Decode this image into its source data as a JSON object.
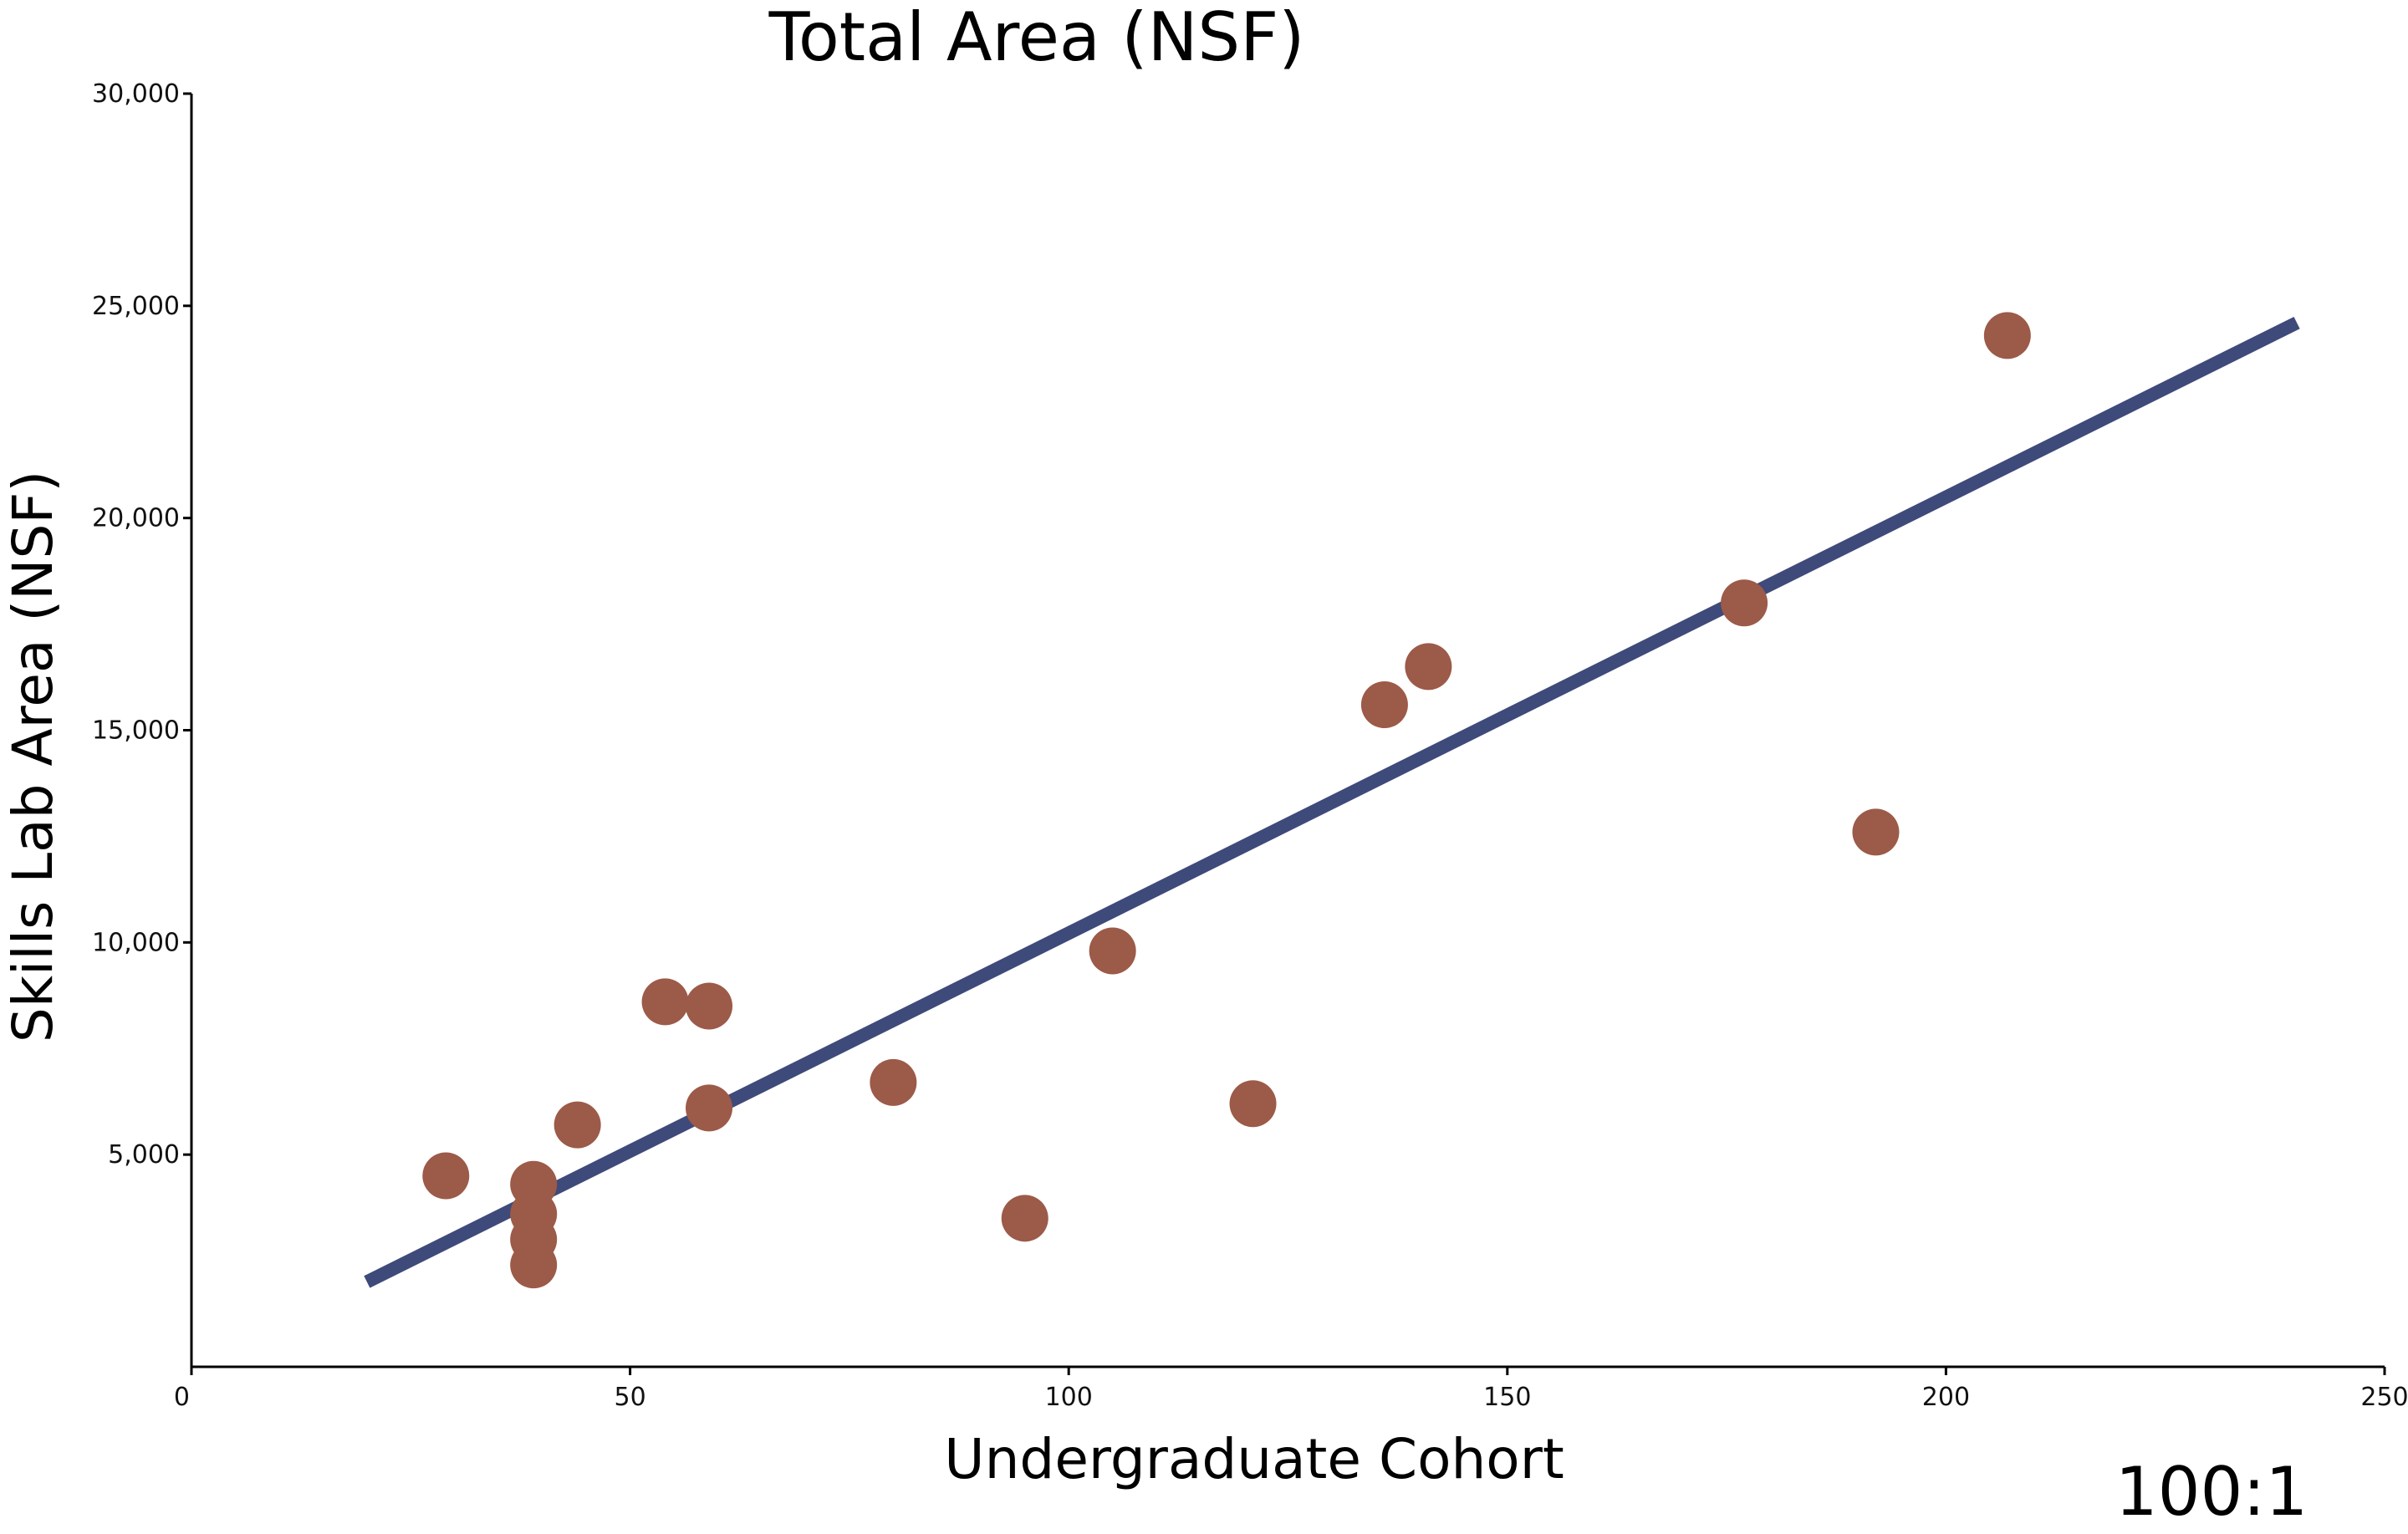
{
  "chart_data": {
    "type": "scatter",
    "title": "Total Area (NSF)",
    "xlabel": "Undergraduate Cohort",
    "ylabel": "Skills Lab Area (NSF)",
    "annotation": "100:1",
    "xlim": [
      0,
      250
    ],
    "ylim": [
      0,
      30000
    ],
    "x_ticks": [
      0,
      50,
      100,
      150,
      200,
      250
    ],
    "x_tick_labels": [
      "0",
      "50",
      "100",
      "150",
      "200",
      "250"
    ],
    "y_ticks": [
      5000,
      10000,
      15000,
      20000,
      25000,
      30000
    ],
    "y_tick_labels": [
      "5,000",
      "10,000",
      "15,000",
      "20,000",
      "25,000",
      "30,000"
    ],
    "grid": false,
    "point_color": "#9C5A48",
    "line_color": "#3E4A7A",
    "points": [
      {
        "x": 29,
        "y": 4500
      },
      {
        "x": 39,
        "y": 4300
      },
      {
        "x": 39,
        "y": 3600
      },
      {
        "x": 39,
        "y": 3000
      },
      {
        "x": 39,
        "y": 2400
      },
      {
        "x": 44,
        "y": 5700
      },
      {
        "x": 54,
        "y": 8600
      },
      {
        "x": 59,
        "y": 8500
      },
      {
        "x": 59,
        "y": 6100
      },
      {
        "x": 80,
        "y": 6700
      },
      {
        "x": 95,
        "y": 3500
      },
      {
        "x": 105,
        "y": 9800
      },
      {
        "x": 121,
        "y": 6200
      },
      {
        "x": 136,
        "y": 15600
      },
      {
        "x": 141,
        "y": 16500
      },
      {
        "x": 177,
        "y": 18000
      },
      {
        "x": 192,
        "y": 12600
      },
      {
        "x": 207,
        "y": 24300
      }
    ],
    "trend_line": {
      "x": [
        20,
        240
      ],
      "y": [
        2000,
        24600
      ]
    }
  }
}
